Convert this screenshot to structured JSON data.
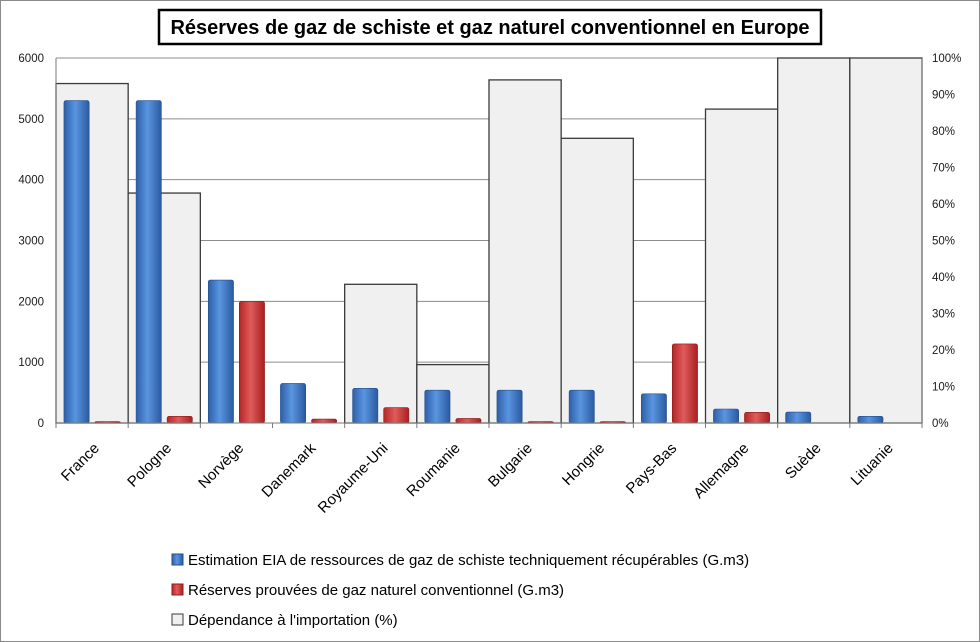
{
  "chart_data": {
    "type": "bar",
    "title": "Réserves de gaz de schiste et gaz naturel conventionnel en Europe",
    "categories": [
      "France",
      "Pologne",
      "Norvège",
      "Danemark",
      "Royaume-Uni",
      "Roumanie",
      "Bulgarie",
      "Hongrie",
      "Pays-Bas",
      "Allemagne",
      "Suède",
      "Lituanie"
    ],
    "series": [
      {
        "name": "Estimation EIA de ressources de gaz de schiste techniquement récupérables (G.m3)",
        "axis": "left",
        "color": "#3b70c4",
        "values": [
          5300,
          5300,
          2350,
          650,
          570,
          540,
          540,
          540,
          480,
          230,
          180,
          110
        ]
      },
      {
        "name": "Réserves prouvées de gaz naturel conventionnel (G.m3)",
        "axis": "left",
        "color": "#d23c3c",
        "values": [
          20,
          110,
          2000,
          65,
          255,
          75,
          20,
          20,
          1300,
          175,
          0,
          0
        ]
      },
      {
        "name": "Dépendance à l'importation (%)",
        "axis": "right",
        "color": "#f0f0f0",
        "values": [
          93,
          63,
          0,
          0,
          38,
          16,
          94,
          78,
          0,
          86,
          100,
          100
        ]
      }
    ],
    "ylim": [
      0,
      6000
    ],
    "yticks": [
      "0",
      "1000",
      "2000",
      "3000",
      "4000",
      "5000",
      "6000"
    ],
    "y2lim": [
      0,
      100
    ],
    "y2ticks": [
      "0%",
      "10%",
      "20%",
      "30%",
      "40%",
      "50%",
      "60%",
      "70%",
      "80%",
      "90%",
      "100%"
    ],
    "grid": true,
    "legend_position": "bottom"
  }
}
